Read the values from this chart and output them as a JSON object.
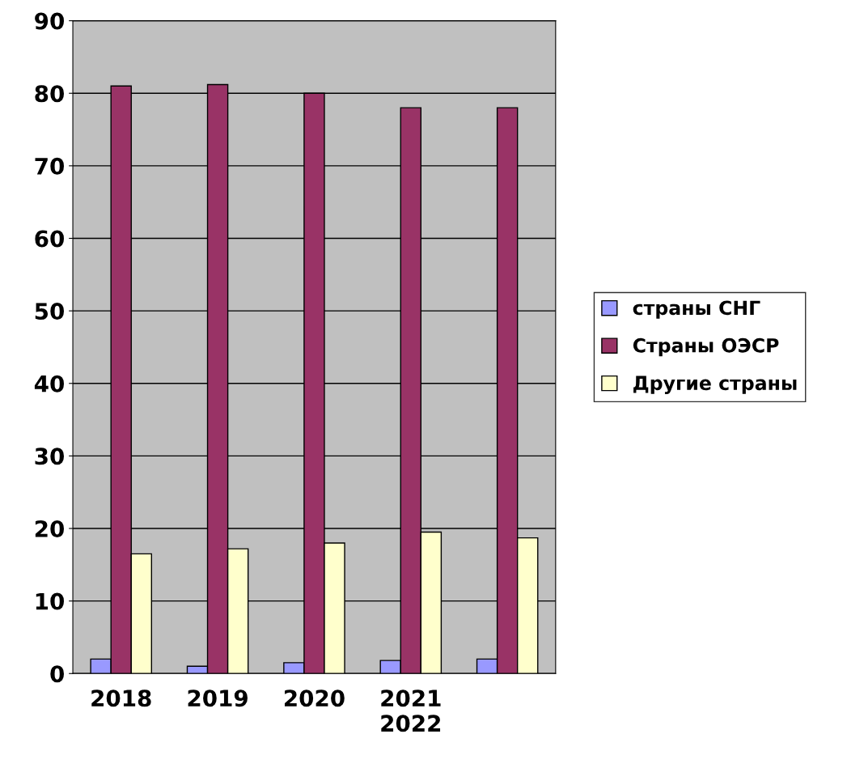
{
  "chart_data": {
    "type": "bar",
    "categories": [
      "2018",
      "2019",
      "2020",
      "2021\n2022",
      null
    ],
    "series": [
      {
        "name": "страны СНГ",
        "color": "#9999ff",
        "values": [
          2,
          1,
          1.5,
          1.8,
          2
        ]
      },
      {
        "name": "Страны ОЭСР",
        "color": "#993366",
        "values": [
          81,
          81.2,
          80,
          78,
          78
        ]
      },
      {
        "name": "Другие страны",
        "color": "#ffffcc",
        "values": [
          16.5,
          17.2,
          18,
          19.5,
          18.7
        ]
      }
    ],
    "ylim": [
      0,
      90
    ],
    "yticks": [
      0,
      10,
      20,
      30,
      40,
      50,
      60,
      70,
      80,
      90
    ],
    "grid": "y",
    "legend": "right"
  }
}
